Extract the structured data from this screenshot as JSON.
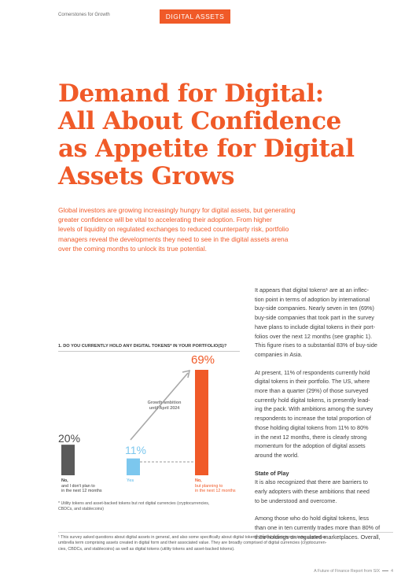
{
  "header": {
    "left": "Cornerstones for Growth",
    "tag": "DIGITAL ASSETS"
  },
  "title": {
    "lines": [
      "Demand for Digital:",
      "All About Confidence",
      "as Appetite for Digital",
      "Assets Grows"
    ]
  },
  "intro": {
    "lines": [
      "Global investors are growing increasingly hungry for digital assets, but generating",
      "greater confidence will be vital to accelerating their adoption. From higher",
      "levels of liquidity on regulated exchanges to reduced counterparty risk, portfolio",
      "managers reveal the developments they need to see in the digital assets arena",
      "over the coming months to unlock its true potential."
    ]
  },
  "body": {
    "p1": [
      "It appears that digital tokens¹ are at an inflec-",
      "tion point in terms of adoption by international",
      "buy-side companies. Nearly seven in ten (69%)",
      "buy-side companies that took part in the survey",
      "have plans to include digital tokens in their port-",
      "folios over the next 12 months (see graphic 1).",
      "This figure rises to a substantial 83% of buy-side",
      "companies in Asia."
    ],
    "p2": [
      "At present, 11% of respondents currently hold",
      "digital tokens in their portfolio. The US, where",
      "more than a quarter (29%) of those surveyed",
      "currently hold digital tokens, is presently lead-",
      "ing the pack. With ambitions among the survey",
      "respondents to increase the total proportion of",
      "those holding digital tokens from 11% to 80%",
      "in the next 12 months, there is clearly strong",
      "momentum for the adoption of digital assets",
      "around the world."
    ],
    "heading": "State of Play",
    "p3": [
      "It is also recognized that there are barriers to",
      "early adopters with these ambitions that need",
      "to be understood and overcome."
    ],
    "p4": [
      "Among those who do hold digital tokens, less",
      "than one in ten currently trades more than 80% of",
      "their holdings on regulated marketplaces. Overall,"
    ]
  },
  "chart": {
    "title": "1. DO YOU CURRENTLY HOLD ANY DIGITAL TOKENS* IN YOUR PORTFOLIO(S)?",
    "annotation_lines": [
      "Growth ambition",
      "until April 2024"
    ],
    "footnote_lines": [
      "* Utility tokens and asset-backed tokens but not digital currencies (cryptocurrencies,",
      "  CBDCs, and stablecoins)"
    ]
  },
  "chart_data": {
    "type": "bar",
    "categories": [
      "No, and I don't plan to in the next 12 months",
      "Yes",
      "No, but planning to in the next 12 months"
    ],
    "values": [
      20,
      11,
      69
    ],
    "value_labels": [
      "20%",
      "11%",
      "69%"
    ],
    "colors": [
      "#5a5a5a",
      "#7cc7ee",
      "#f05a28"
    ],
    "label_bold": [
      "No,",
      "Yes",
      "No,"
    ],
    "label_rest": [
      [
        "and I don't plan to",
        "in the next 12 months"
      ],
      [],
      [
        "but planning to",
        "in the next 12 months"
      ]
    ],
    "ylim": [
      0,
      69
    ]
  },
  "footnote": {
    "lines": [
      "¹  This survey asked questions about digital assets in general, and also some specifically about digital tokens. Digital assets tends to be applied as",
      "   umbrella term comprising assets created in digital form and their associated value. They are broadly comprised of digital currencies (cryptocurren-",
      "   cies, CBDCs, and stablecoins) as well as digital tokens (utility tokens and asset-backed tokens)."
    ]
  },
  "page": {
    "report": "A Future of Finance Report from SIX",
    "number": "4"
  }
}
